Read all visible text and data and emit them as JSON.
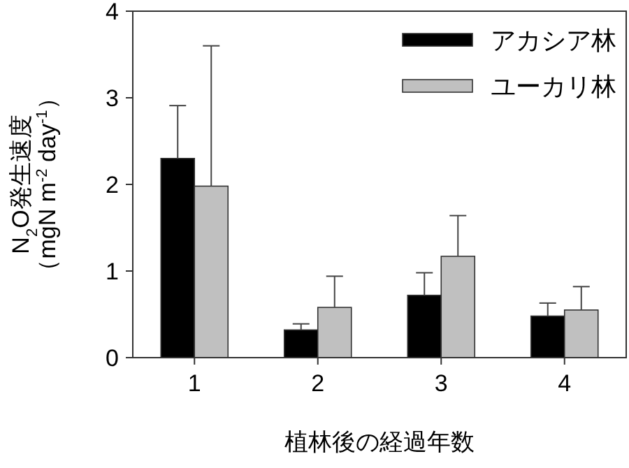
{
  "chart_data": {
    "type": "bar",
    "xlabel": "植林後の経過年数",
    "ylabel": "N$_{2}$O発生速度（mgN m$^{-2}$ day$^{-1}$）",
    "categories": [
      "1",
      "2",
      "3",
      "4"
    ],
    "series": [
      {
        "name": "アカシア林",
        "color": "#000000",
        "values": [
          2.3,
          0.32,
          0.72,
          0.48
        ],
        "errors": [
          [
            2.3,
            2.91
          ],
          [
            0.32,
            0.39
          ],
          [
            0.72,
            0.98
          ],
          [
            0.48,
            0.63
          ]
        ]
      },
      {
        "name": "ユーカリ林",
        "color": "#c0c0c0",
        "values": [
          1.98,
          0.58,
          1.17,
          0.55
        ],
        "errors": [
          [
            1.98,
            3.6
          ],
          [
            0.58,
            0.94
          ],
          [
            1.17,
            1.64
          ],
          [
            0.55,
            0.82
          ]
        ]
      }
    ],
    "ylim": [
      0,
      4
    ],
    "yticks": [
      0,
      1,
      2,
      3,
      4
    ],
    "legend": "top right"
  }
}
